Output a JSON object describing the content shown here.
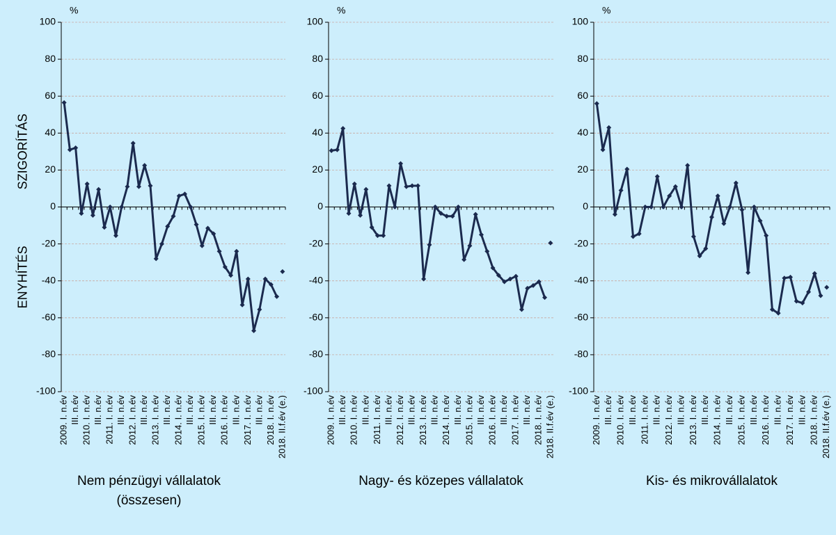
{
  "chart_data": [
    {
      "type": "line",
      "title": "Nem pénzügyi vállalatok (összesen)",
      "unit": "%",
      "annotations": [
        "SZIGORÍTÁS",
        "ENYHÍTÉS"
      ],
      "categories": [
        "2009. I. n.év",
        null,
        "III. n.év",
        null,
        "2010. I. n.év",
        null,
        "III. n.év",
        null,
        "2011. I. n.év",
        null,
        "III. n.év",
        null,
        "2012. I. n.év",
        null,
        "III. n.év",
        null,
        "2013. I. n.év",
        null,
        "III. n.év",
        null,
        "2014. I. n.év",
        null,
        "III. n.év",
        null,
        "2015. I. n.év",
        null,
        "III. n.év",
        null,
        "2016. I. n.év",
        null,
        "III. n.év",
        null,
        "2017. I. n.év",
        null,
        "III. n.év",
        null,
        "2018. I. n.év",
        null,
        "2018. II.f.év (e.)"
      ],
      "values": [
        56.5,
        31,
        32,
        -3.5,
        12.5,
        -4.5,
        9.5,
        -11,
        0,
        -15.5,
        0,
        11,
        34.5,
        11,
        22.5,
        11.5,
        -28,
        -20,
        -10.5,
        -5,
        6,
        7,
        0,
        -9.5,
        -21,
        -11.5,
        -14.5,
        -24,
        -32.5,
        -37,
        -24,
        -53,
        -39,
        -67,
        -55.5,
        -39,
        -42,
        -48.5,
        -35
      ],
      "unconnected_last": true,
      "color": "#1b2a4e",
      "ylim": [
        -100,
        100
      ],
      "yticks": [
        -100,
        -80,
        -60,
        -40,
        -20,
        0,
        20,
        40,
        60,
        80,
        100
      ],
      "grid": true
    },
    {
      "type": "line",
      "title": "Nagy- és közepes vállalatok",
      "unit": "%",
      "categories": [
        "2009. I. n.év",
        null,
        "III. n.év",
        null,
        "2010. I. n.év",
        null,
        "III. n.év",
        null,
        "2011. I. n.év",
        null,
        "III. n.év",
        null,
        "2012. I. n.év",
        null,
        "III. n.év",
        null,
        "2013. I. n.év",
        null,
        "III. n.év",
        null,
        "2014. I. n.év",
        null,
        "III. n.év",
        null,
        "2015. I. n.év",
        null,
        "III. n.év",
        null,
        "2016. I. n.év",
        null,
        "III. n.év",
        null,
        "2017. I. n.év",
        null,
        "III. n.év",
        null,
        "2018. I. n.év",
        null,
        "2018. II.f.év (e.)"
      ],
      "values": [
        30.5,
        31,
        42.5,
        -3.5,
        12.5,
        -4.5,
        9.5,
        -11,
        -15.5,
        -15.5,
        11.5,
        0,
        23.5,
        11,
        11.5,
        11.5,
        -39,
        -20.5,
        0,
        -3.5,
        -5,
        -5,
        0,
        -28.5,
        -21,
        -4,
        -15,
        -24,
        -33,
        -37,
        -40.5,
        -39,
        -37.5,
        -55.5,
        -44,
        -42.5,
        -40.5,
        -49,
        -19.5
      ],
      "unconnected_last": true,
      "color": "#1b2a4e",
      "ylim": [
        -100,
        100
      ],
      "yticks": [
        -100,
        -80,
        -60,
        -40,
        -20,
        0,
        20,
        40,
        60,
        80,
        100
      ],
      "grid": true
    },
    {
      "type": "line",
      "title": "Kis- és mikrovállalatok",
      "unit": "%",
      "categories": [
        "2009. I. n.év",
        null,
        "III. n.év",
        null,
        "2010. I. n.év",
        null,
        "III. n.év",
        null,
        "2011. I. n.év",
        null,
        "III. n.év",
        null,
        "2012. I. n.év",
        null,
        "III. n.év",
        null,
        "2013. I. n.év",
        null,
        "III. n.év",
        null,
        "2014. I. n.év",
        null,
        "III. n.év",
        null,
        "2015. I. n.év",
        null,
        "III. n.év",
        null,
        "2016. I. n.év",
        null,
        "III. n.év",
        null,
        "2017. I. n.év",
        null,
        "III. n.év",
        null,
        "2018. I. n.év",
        null,
        "2018. II.f.év (e.)"
      ],
      "values": [
        56,
        31,
        43,
        -4,
        9,
        20.5,
        -16,
        -14.5,
        0,
        0,
        16.5,
        0,
        6,
        11,
        0,
        22.5,
        -16,
        -26.5,
        -22.5,
        -5.5,
        6,
        -9,
        0,
        13,
        -1.5,
        -35.5,
        0,
        -7.5,
        -15.5,
        -55.5,
        -57.5,
        -38.5,
        -38,
        -51,
        -52,
        -46,
        -36,
        -48,
        -43.5
      ],
      "unconnected_last": true,
      "color": "#1b2a4e",
      "ylim": [
        -100,
        100
      ],
      "yticks": [
        -100,
        -80,
        -60,
        -40,
        -20,
        0,
        20,
        40,
        60,
        80,
        100
      ],
      "grid": true
    }
  ]
}
